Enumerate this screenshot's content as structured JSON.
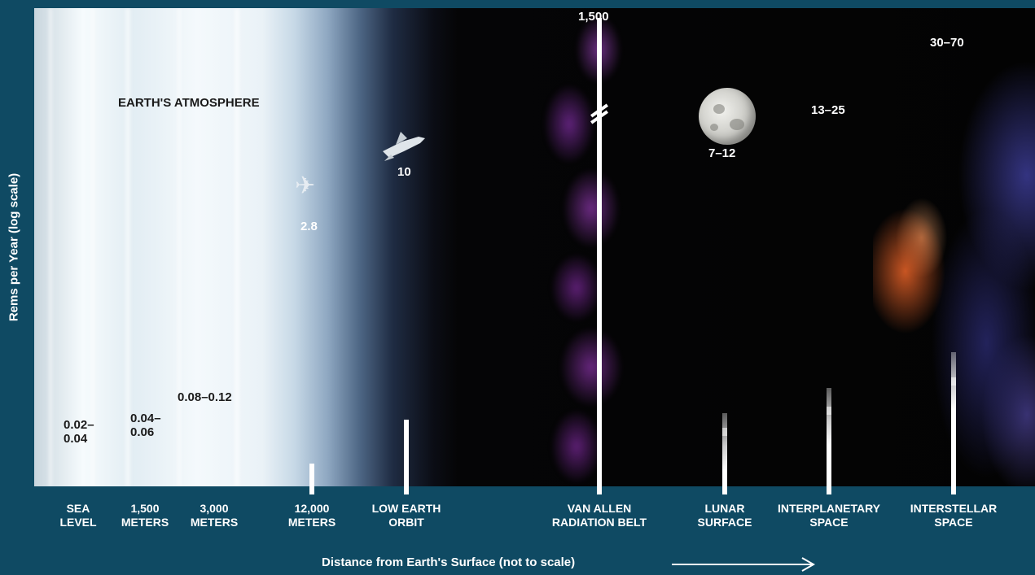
{
  "chart_data": {
    "type": "bar",
    "title": "",
    "xlabel": "Distance from Earth's Surface (not to scale)",
    "ylabel": "Rems per Year (log scale)",
    "yscale": "log",
    "axis_break_at": "VAN ALLEN RADIATION BELT",
    "annotation": "EARTH'S ATMOSPHERE",
    "categories": [
      "SEA\nLEVEL",
      "1,500\nMETERS",
      "3,000\nMETERS",
      "12,000\nMETERS",
      "LOW EARTH\nORBIT",
      "VAN ALLEN\nRADIATION BELT",
      "LUNAR\nSURFACE",
      "INTERPLANETARY\nSPACE",
      "INTERSTELLAR\nSPACE"
    ],
    "value_labels": [
      "0.02–\n0.04",
      "0.04–\n0.06",
      "0.08–0.12",
      "2.8",
      "10",
      "1,500",
      "7–12",
      "13–25",
      "30–70"
    ],
    "ranges": [
      [
        0.02,
        0.04
      ],
      [
        0.04,
        0.06
      ],
      [
        0.08,
        0.12
      ],
      [
        2.8,
        2.8
      ],
      [
        10,
        10
      ],
      [
        1500,
        1500
      ],
      [
        7,
        12
      ],
      [
        13,
        25
      ],
      [
        30,
        70
      ]
    ]
  }
}
